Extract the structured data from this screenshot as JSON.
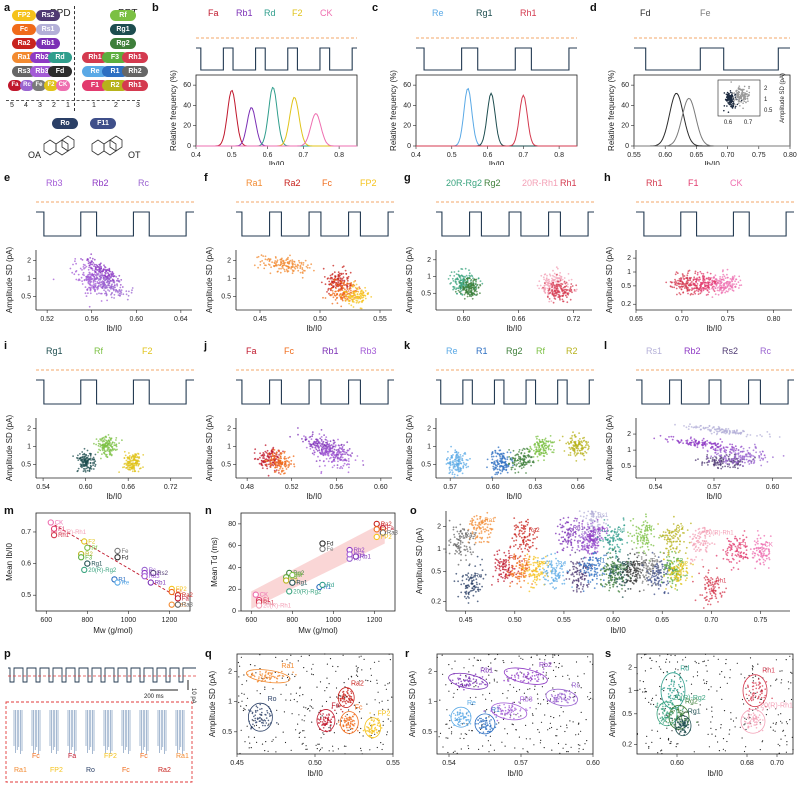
{
  "panel_letters": [
    "a",
    "b",
    "c",
    "d",
    "e",
    "f",
    "g",
    "h",
    "i",
    "j",
    "k",
    "l",
    "m",
    "n",
    "o",
    "p",
    "q",
    "r",
    "s"
  ],
  "colors": {
    "Fa": "#c0172c",
    "Rb1": "#7b2fb5",
    "Rd": "#2f9e8c",
    "F2": "#e0c31a",
    "CK": "#ee6fb0",
    "Re": "#5aa9e6",
    "Rg1": "#1d4d4f",
    "Rh1": "#d43a4f",
    "Fd": "#2b2b2b",
    "Fe": "#7a7a7a",
    "Rb3": "#a35bd6",
    "Rb2": "#8e39c4",
    "Rc": "#9a64d0",
    "Ra1": "#f28a30",
    "Ra2": "#c8231e",
    "Fc": "#f06b1a",
    "FP2": "#f5c21b",
    "20R-Rg2": "#38a37e",
    "Rg2": "#3e7f3a",
    "20R-Rh1": "#f3a0b6",
    "F1": "#e23a6e",
    "Rf": "#7bc043",
    "R1": "#2d6fc2",
    "R2": "#b7b21b",
    "Rs1": "#b4b0d8",
    "Rs2": "#4f3a73",
    "Ro": "#2a3f66",
    "F3": "#5cae3e",
    "F11": "#3f4f8a",
    "OA": "#222",
    "OT": "#222"
  },
  "panel_a": {
    "left_title": "PPD",
    "right_title": "PPT",
    "bottom_left": "OA",
    "bottom_right": "OT",
    "left_ticks": [
      "5",
      "4",
      "3",
      "2",
      "1"
    ],
    "right_ticks": [
      "1",
      "2",
      "3"
    ],
    "left_rows": [
      [
        "FP2",
        "Rs2"
      ],
      [
        "Fc",
        "Rs1"
      ],
      [
        "Ra2",
        "Rb1"
      ],
      [
        "Ra1",
        "Rb2",
        "Rd"
      ],
      [
        "Rs3",
        "Rb3",
        "Fd"
      ],
      [
        "Fa",
        "Rc",
        "Fe",
        "F2",
        "CK"
      ]
    ],
    "right_rows": [
      [
        "Rf"
      ],
      [
        "Rg1"
      ],
      [
        "Rg2"
      ],
      [
        "Rh1",
        "F3",
        "Rh1"
      ],
      [
        "Re",
        "R1",
        "Rh2"
      ],
      [
        "F1",
        "R2",
        "Rh1"
      ]
    ],
    "mid_left": [
      "Ro"
    ],
    "mid_right": [
      "F11"
    ]
  },
  "panel_b": {
    "labels": [
      "Fa",
      "Rb1",
      "Rd",
      "F2",
      "CK"
    ],
    "ylabel": "Relative frequency (%)",
    "xlabel": "Ib/I0",
    "yticks": [
      "0",
      "20",
      "40",
      "60"
    ],
    "xticks": [
      "0.4",
      "0.5",
      "0.6",
      "0.7",
      "0.8"
    ]
  },
  "panel_c": {
    "labels": [
      "Re",
      "Rg1",
      "Rh1"
    ],
    "ylabel": "Relative frequency (%)",
    "xlabel": "Ib/I0",
    "yticks": [
      "0",
      "20",
      "40",
      "60"
    ],
    "xticks": [
      "0.4",
      "0.5",
      "0.6",
      "0.7",
      "0.8"
    ]
  },
  "panel_d": {
    "labels": [
      "Fd",
      "Fe"
    ],
    "ylabel": "Relative frequency (%)",
    "xlabel": "Ib/I0",
    "yticks": [
      "0",
      "20",
      "40",
      "60"
    ],
    "xticks": [
      "0.55",
      "0.60",
      "0.65",
      "0.70",
      "0.75",
      "0.80"
    ],
    "inset_ylabel": "Amplitude SD (pA)",
    "inset_xticks": [
      "0.6",
      "0.7"
    ],
    "inset_yticks": [
      "0.5",
      "1",
      "2"
    ]
  },
  "panel_e": {
    "labels": [
      "Rb3",
      "Rb2",
      "Rc"
    ],
    "xticks": [
      "0.52",
      "0.56",
      "0.60",
      "0.64"
    ],
    "yticks": [
      "0.5",
      "1",
      "2"
    ]
  },
  "panel_f": {
    "labels": [
      "Ra1",
      "Ra2",
      "Fc",
      "FP2"
    ],
    "xticks": [
      "0.45",
      "0.50",
      "0.55"
    ],
    "yticks": [
      "0.5",
      "1",
      "2"
    ]
  },
  "panel_g": {
    "labels": [
      "20R-Rg2",
      "Rg2",
      "20R-Rh1",
      "Rh1"
    ],
    "xticks": [
      "0.60",
      "0.66",
      "0.72"
    ],
    "yticks": [
      "0.5",
      "1",
      "2"
    ]
  },
  "panel_h": {
    "labels": [
      "Rh1",
      "F1",
      "CK"
    ],
    "xticks": [
      "0.65",
      "0.70",
      "0.75",
      "0.80"
    ],
    "yticks": [
      "0.2",
      "0.5",
      "1",
      "2"
    ]
  },
  "panel_i": {
    "labels": [
      "Rg1",
      "Rf",
      "F2"
    ],
    "xticks": [
      "0.54",
      "0.60",
      "0.66",
      "0.72"
    ],
    "yticks": [
      "0.5",
      "1",
      "2"
    ]
  },
  "panel_j": {
    "labels": [
      "Fa",
      "Fc",
      "Rb1",
      "Rb3"
    ],
    "xticks": [
      "0.48",
      "0.52",
      "0.56",
      "0.60"
    ],
    "yticks": [
      "0.5",
      "1",
      "2"
    ]
  },
  "panel_k": {
    "labels": [
      "Re",
      "R1",
      "Rg2",
      "Rf",
      "R2"
    ],
    "xticks": [
      "0.57",
      "0.60",
      "0.63",
      "0.66"
    ],
    "yticks": [
      "0.5",
      "1",
      "2"
    ]
  },
  "panel_l": {
    "labels": [
      "Rs1",
      "Rb2",
      "Rs2",
      "Rc"
    ],
    "xticks": [
      "0.54",
      "0.57",
      "0.60"
    ],
    "yticks": [
      "0.5",
      "1",
      "2"
    ]
  },
  "common": {
    "ylabel_sd": "Amplitude SD (pA)",
    "xlabel_ib": "Ib/I0"
  },
  "panel_m": {
    "ylabel": "Mean Ib/I0",
    "xlabel": "Mw (g/mol)",
    "xticks": [
      "600",
      "800",
      "1000",
      "1200"
    ],
    "yticks": [
      "0.5",
      "0.6",
      "0.7"
    ],
    "points": [
      {
        "name": "CK",
        "x": 622,
        "y": 0.73
      },
      {
        "name": "20(R)-Rh1",
        "x": 638,
        "y": 0.7
      },
      {
        "name": "Rh1",
        "x": 638,
        "y": 0.69
      },
      {
        "name": "F1",
        "x": 638,
        "y": 0.71
      },
      {
        "name": "F2",
        "x": 785,
        "y": 0.67
      },
      {
        "name": "R2",
        "x": 770,
        "y": 0.63
      },
      {
        "name": "F3",
        "x": 770,
        "y": 0.62
      },
      {
        "name": "Rg1",
        "x": 800,
        "y": 0.6
      },
      {
        "name": "20(R)-Rg2",
        "x": 785,
        "y": 0.58
      },
      {
        "name": "Fe",
        "x": 947,
        "y": 0.64
      },
      {
        "name": "Fd",
        "x": 947,
        "y": 0.62
      },
      {
        "name": "Rf",
        "x": 800,
        "y": 0.65
      },
      {
        "name": "R1",
        "x": 932,
        "y": 0.55
      },
      {
        "name": "Re",
        "x": 947,
        "y": 0.54
      },
      {
        "name": "Rc",
        "x": 1079,
        "y": 0.58
      },
      {
        "name": "Rb2",
        "x": 1079,
        "y": 0.57
      },
      {
        "name": "Rs2",
        "x": 1121,
        "y": 0.57
      },
      {
        "name": "Rb3",
        "x": 1079,
        "y": 0.56
      },
      {
        "name": "Rb1",
        "x": 1109,
        "y": 0.54
      },
      {
        "name": "FP2",
        "x": 1211,
        "y": 0.52
      },
      {
        "name": "Fc",
        "x": 1211,
        "y": 0.51
      },
      {
        "name": "Ra2",
        "x": 1241,
        "y": 0.5
      },
      {
        "name": "Fa",
        "x": 1241,
        "y": 0.49
      },
      {
        "name": "Ra1",
        "x": 1211,
        "y": 0.47
      },
      {
        "name": "Ra3",
        "x": 1241,
        "y": 0.47
      }
    ]
  },
  "panel_n": {
    "ylabel": "Mean Td (ms)",
    "xlabel": "Mw (g/mol)",
    "xticks": [
      "600",
      "800",
      "1000",
      "1200"
    ],
    "yticks": [
      "0",
      "20",
      "40",
      "60",
      "80"
    ],
    "points": [
      {
        "name": "CK",
        "x": 622,
        "y": 15
      },
      {
        "name": "F1",
        "x": 638,
        "y": 10
      },
      {
        "name": "Rh1",
        "x": 638,
        "y": 8
      },
      {
        "name": "20(R)-Rh1",
        "x": 638,
        "y": 5
      },
      {
        "name": "Rg2",
        "x": 785,
        "y": 35
      },
      {
        "name": "F3",
        "x": 770,
        "y": 31
      },
      {
        "name": "R2",
        "x": 770,
        "y": 28
      },
      {
        "name": "Rf",
        "x": 800,
        "y": 33
      },
      {
        "name": "Rg1",
        "x": 800,
        "y": 26
      },
      {
        "name": "20(R)-Rg2",
        "x": 785,
        "y": 18
      },
      {
        "name": "Fd",
        "x": 947,
        "y": 62
      },
      {
        "name": "Fe",
        "x": 947,
        "y": 57
      },
      {
        "name": "R1",
        "x": 932,
        "y": 22
      },
      {
        "name": "Rd",
        "x": 947,
        "y": 24
      },
      {
        "name": "Rc",
        "x": 1079,
        "y": 48
      },
      {
        "name": "Rb2",
        "x": 1079,
        "y": 56
      },
      {
        "name": "Rb3",
        "x": 1079,
        "y": 52
      },
      {
        "name": "Rb1",
        "x": 1109,
        "y": 50
      },
      {
        "name": "Ra2",
        "x": 1211,
        "y": 80
      },
      {
        "name": "Fa",
        "x": 1241,
        "y": 76
      },
      {
        "name": "Ra3",
        "x": 1241,
        "y": 72
      },
      {
        "name": "FP2",
        "x": 1211,
        "y": 68
      },
      {
        "name": "Fc",
        "x": 1211,
        "y": 75
      }
    ]
  },
  "panel_o": {
    "ylabel": "Amplitude SD (pA)",
    "xlabel": "Ib/I0",
    "xticks": [
      "0.45",
      "0.50",
      "0.55",
      "0.60",
      "0.65",
      "0.70",
      "0.75"
    ],
    "yticks": [
      "0.2",
      "0.5",
      "1",
      "2"
    ],
    "clusters": [
      {
        "name": "Ra1",
        "x": 0.465,
        "y": 1.9
      },
      {
        "name": "Ra3",
        "x": 0.445,
        "y": 1.2
      },
      {
        "name": "Ro",
        "x": 0.455,
        "y": 0.35
      },
      {
        "name": "Fa",
        "x": 0.49,
        "y": 0.6
      },
      {
        "name": "Fc",
        "x": 0.505,
        "y": 0.55
      },
      {
        "name": "FP2",
        "x": 0.52,
        "y": 0.5
      },
      {
        "name": "Ra2",
        "x": 0.51,
        "y": 1.4
      },
      {
        "name": "Re",
        "x": 0.54,
        "y": 0.5
      },
      {
        "name": "Rb1",
        "x": 0.555,
        "y": 1.5
      },
      {
        "name": "Rs1",
        "x": 0.58,
        "y": 2.5
      },
      {
        "name": "Rs2",
        "x": 0.565,
        "y": 0.45
      },
      {
        "name": "Rc",
        "x": 0.575,
        "y": 1.3
      },
      {
        "name": "Rb2",
        "x": 0.58,
        "y": 1.4
      },
      {
        "name": "Rd",
        "x": 0.6,
        "y": 1.4
      },
      {
        "name": "R1",
        "x": 0.58,
        "y": 0.55
      },
      {
        "name": "Rg1",
        "x": 0.605,
        "y": 0.5
      },
      {
        "name": "Fd",
        "x": 0.62,
        "y": 0.5
      },
      {
        "name": "Rg2",
        "x": 0.6,
        "y": 0.45
      },
      {
        "name": "Fe",
        "x": 0.635,
        "y": 0.55
      },
      {
        "name": "F11",
        "x": 0.645,
        "y": 0.45
      },
      {
        "name": "F3",
        "x": 0.66,
        "y": 0.55
      },
      {
        "name": "F2",
        "x": 0.665,
        "y": 0.5
      },
      {
        "name": "Rf",
        "x": 0.63,
        "y": 1.5
      },
      {
        "name": "R2",
        "x": 0.66,
        "y": 1.5
      },
      {
        "name": "20(R)-Rh1",
        "x": 0.69,
        "y": 1.3
      },
      {
        "name": "Rh1",
        "x": 0.7,
        "y": 0.3
      },
      {
        "name": "F1",
        "x": 0.725,
        "y": 0.9
      },
      {
        "name": "CK",
        "x": 0.75,
        "y": 0.9
      }
    ]
  },
  "panel_p": {
    "scale_time": "200 ms",
    "scale_current": "10 pA",
    "labels": [
      "Ra1",
      "Fc",
      "FP2",
      "Fa",
      "Ro",
      "FP2",
      "Fc",
      "Fc",
      "Ra2",
      "Ra1"
    ]
  },
  "panel_q": {
    "labels": [
      "Ra1",
      "Ra2",
      "Ro",
      "Fa",
      "Fc",
      "FP2"
    ],
    "xticks": [
      "0.45",
      "0.50",
      "0.55"
    ],
    "yticks": [
      "0.5",
      "1",
      "2"
    ]
  },
  "panel_r": {
    "labels": [
      "Rb1",
      "Rb2",
      "Rc",
      "Re",
      "R1",
      "Rb3"
    ],
    "xticks": [
      "0.54",
      "0.57",
      "0.60"
    ],
    "yticks": [
      "0.5",
      "1",
      "2"
    ]
  },
  "panel_s": {
    "labels": [
      "Rd",
      "20(R)-Rg2",
      "Rg2",
      "Rg1",
      "Rh1",
      "20(R)-Rh1"
    ],
    "xticks": [
      "0.60",
      "0.68",
      "0.70"
    ],
    "yticks": [
      "0.2",
      "0.5",
      "1",
      "2"
    ]
  }
}
